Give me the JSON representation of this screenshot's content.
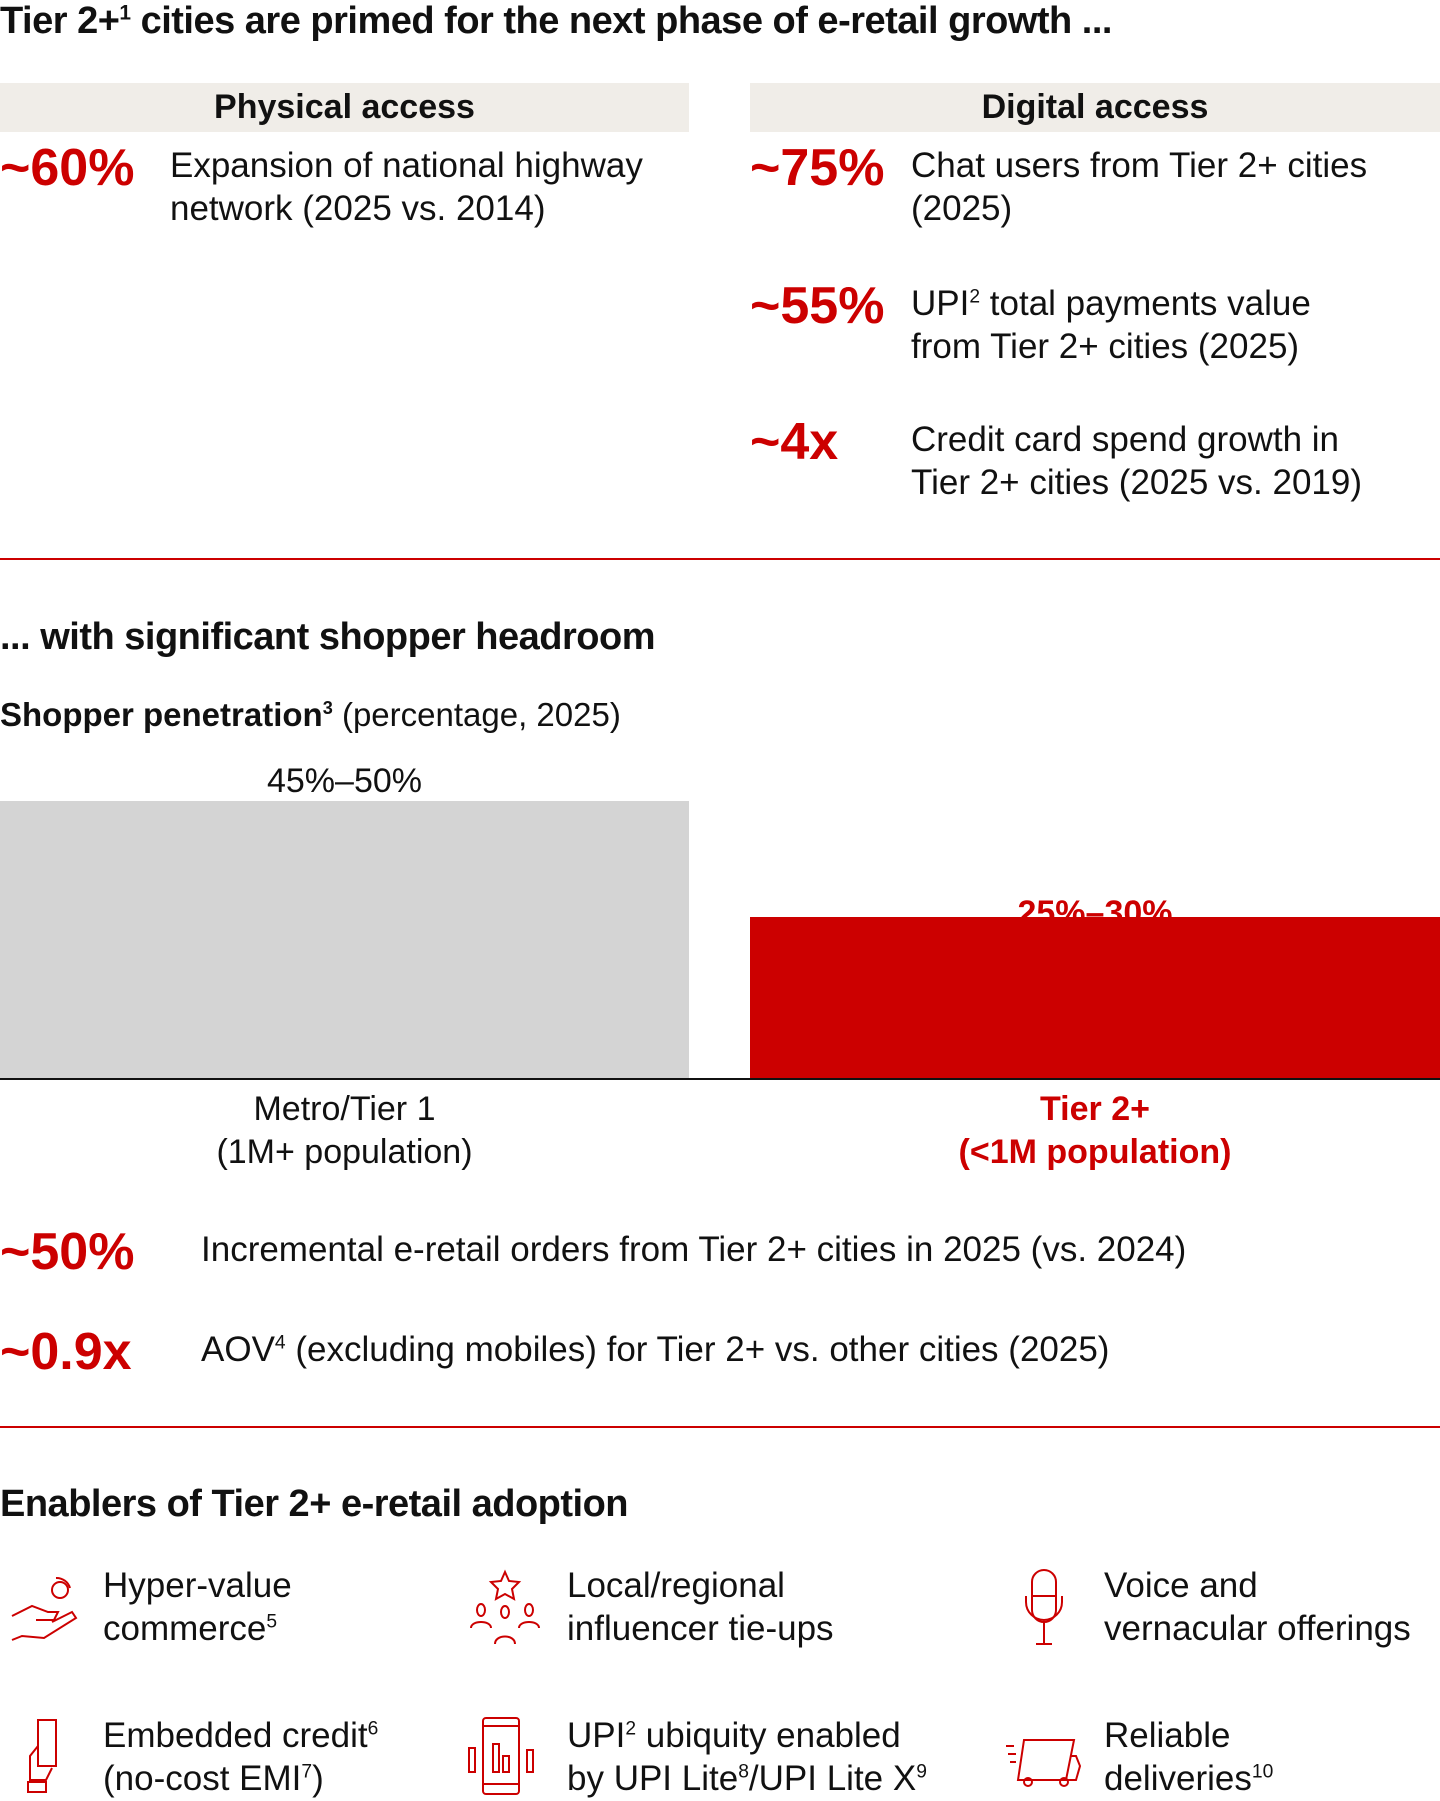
{
  "title": {
    "pre": "Tier 2+",
    "sup": "1",
    "post": " cities are primed for the next phase of e-retail growth ..."
  },
  "physical": {
    "header": "Physical access",
    "items": [
      {
        "value": "~60%",
        "line1": "Expansion of national highway",
        "line2": "network (2025 vs. 2014)"
      }
    ]
  },
  "digital": {
    "header": "Digital access",
    "items": [
      {
        "value": "~75%",
        "line1": "Chat users from Tier 2+ cities",
        "line2": "(2025)"
      },
      {
        "value": "~55%",
        "line1_pre": "UPI",
        "line1_sup": "2",
        "line1_post": " total payments value",
        "line2": "from Tier 2+ cities (2025)"
      },
      {
        "value": "~4x",
        "line1": "Credit card spend growth in",
        "line2": "Tier 2+ cities (2025 vs. 2019)"
      }
    ]
  },
  "headroom": {
    "title": "... with significant shopper headroom",
    "chart_title": "Shopper penetration",
    "chart_title_sup": "3",
    "chart_subtitle": " (percentage, 2025)"
  },
  "chart_data": {
    "type": "bar",
    "categories": [
      "Metro/Tier 1 (1M+ population)",
      "Tier 2+ (<1M population)"
    ],
    "series": [
      {
        "values": [
          [
            45,
            50
          ],
          [
            25,
            30
          ]
        ]
      }
    ],
    "data_labels": [
      "45%–50%",
      "25%–30%"
    ],
    "category_lines": [
      [
        "Metro/Tier 1",
        "(1M+ population)"
      ],
      [
        "Tier 2+",
        "(<1M population)"
      ]
    ],
    "colors": [
      "#d4d4d4",
      "#cc0000"
    ]
  },
  "stats": [
    {
      "value": "~50%",
      "text": "Incremental e-retail orders from Tier 2+ cities in 2025 (vs. 2024)"
    },
    {
      "value": "~0.9x",
      "pre": "AOV",
      "sup": "4",
      "post": " (excluding mobiles) for Tier 2+ vs. other cities (2025)"
    }
  ],
  "enablers": {
    "title": "Enablers of Tier 2+ e-retail adoption",
    "items": [
      {
        "icon": "hand-coin-icon",
        "l1": "Hyper-value",
        "l2": "commerce",
        "sup2": "5"
      },
      {
        "icon": "influencer-group-icon",
        "l1": "Local/regional",
        "l2": "influencer tie-ups"
      },
      {
        "icon": "microphone-icon",
        "l1": "Voice and",
        "l2": "vernacular offerings"
      },
      {
        "icon": "card-hand-icon",
        "l1": "Embedded credit",
        "sup1": "6",
        "l2": "(no-cost EMI",
        "sup2": "7",
        "l2post": ")"
      },
      {
        "icon": "phone-chart-icon",
        "l1": "UPI",
        "sup1": "2",
        "l1post": " ubiquity enabled",
        "l2": "by UPI Lite",
        "sup2": "8",
        "l2post": "/UPI Lite X",
        "sup3": "9"
      },
      {
        "icon": "delivery-truck-icon",
        "l1": "Reliable",
        "l2": "deliveries",
        "sup2": "10"
      }
    ]
  },
  "accent": "#cc0000"
}
